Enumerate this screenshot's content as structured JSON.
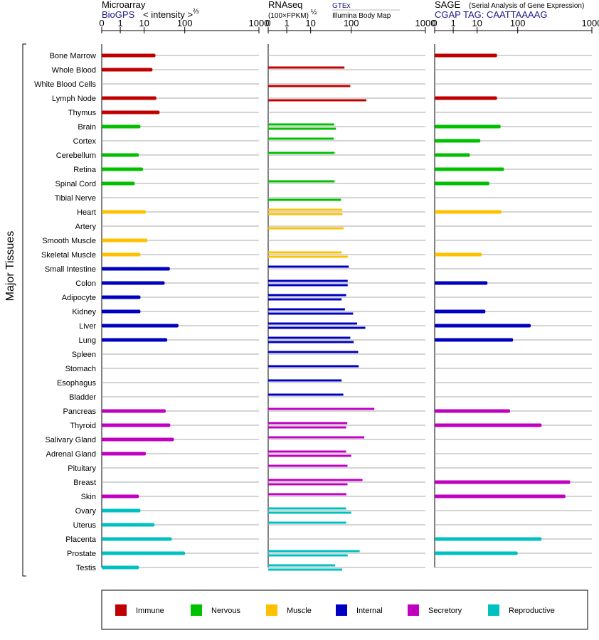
{
  "chart_data": {
    "type": "bar",
    "ylabel": "Major Tissues",
    "categories": [
      "Bone Marrow",
      "Whole Blood",
      "White Blood Cells",
      "Lymph Node",
      "Thymus",
      "Brain",
      "Cortex",
      "Cerebellum",
      "Retina",
      "Spinal Cord",
      "Tibial Nerve",
      "Heart",
      "Artery",
      "Smooth Muscle",
      "Skeletal Muscle",
      "Small Intestine",
      "Colon",
      "Adipocyte",
      "Kidney",
      "Liver",
      "Lung",
      "Spleen",
      "Stomach",
      "Esophagus",
      "Bladder",
      "Pancreas",
      "Thyroid",
      "Salivary Gland",
      "Adrenal Gland",
      "Pituitary",
      "Breast",
      "Skin",
      "Ovary",
      "Uterus",
      "Placenta",
      "Prostate",
      "Testis"
    ],
    "groups": [
      "Immune",
      "Immune",
      "Immune",
      "Immune",
      "Immune",
      "Nervous",
      "Nervous",
      "Nervous",
      "Nervous",
      "Nervous",
      "Nervous",
      "Muscle",
      "Muscle",
      "Muscle",
      "Muscle",
      "Internal",
      "Internal",
      "Internal",
      "Internal",
      "Internal",
      "Internal",
      "Internal",
      "Internal",
      "Internal",
      "Internal",
      "Secretory",
      "Secretory",
      "Secretory",
      "Secretory",
      "Secretory",
      "Secretory",
      "Secretory",
      "Reproductive",
      "Reproductive",
      "Reproductive",
      "Reproductive",
      "Reproductive"
    ],
    "group_colors": {
      "Immune": "#c00000",
      "Nervous": "#00c000",
      "Muscle": "#ffc000",
      "Internal": "#0000c0",
      "Secretory": "#c000c0",
      "Reproductive": "#00c0c0"
    },
    "ticks": [
      "0",
      "1",
      "10",
      "100",
      "1000"
    ],
    "panels": [
      {
        "name": "Microarray",
        "subtitle": "BioGPS",
        "scale_label": "< intensity >",
        "scale_exp": "⅔",
        "values": [
          [
            19
          ],
          [
            16
          ],
          [],
          [
            20
          ],
          [
            24
          ],
          [
            7
          ],
          [],
          [
            6
          ],
          [
            9
          ],
          [
            4
          ],
          [],
          [
            11
          ],
          [],
          [
            12
          ],
          [
            7
          ],
          [
            43
          ],
          [
            32
          ],
          [
            7
          ],
          [
            7
          ],
          [
            70
          ],
          [
            37
          ],
          [],
          [],
          [],
          [],
          [
            34
          ],
          [
            44
          ],
          [
            54
          ],
          [
            11
          ],
          [],
          [],
          [
            6
          ],
          [
            7
          ],
          [
            18
          ],
          [
            48
          ],
          [
            101
          ],
          [
            6
          ]
        ]
      },
      {
        "name": "RNAseq",
        "scale_label": "(100×FPKM)",
        "scale_exp": "½",
        "source1": "GTEx",
        "source2": "Illumina Body Map",
        "values": [
          [],
          [
            68
          ],
          [],
          [],
          [],
          [],
          [],
          [],
          [],
          [],
          [],
          [],
          [],
          [],
          [],
          [],
          [],
          [],
          [],
          [],
          [],
          [],
          [],
          [],
          [],
          [],
          [],
          [],
          [],
          [],
          [],
          [],
          [],
          [],
          [],
          [],
          []
        ],
        "values_pairs": [
          [
            null,
            null
          ],
          [
            68,
            null
          ],
          [
            null,
            95
          ],
          [
            null,
            160
          ],
          [
            null,
            null
          ],
          [
            38,
            42
          ],
          [
            37,
            null
          ],
          [
            39,
            null
          ],
          [
            null,
            null
          ],
          [
            39,
            null
          ],
          [
            null,
            56
          ],
          [
            60,
            61
          ],
          [
            null,
            65
          ],
          [
            null,
            null
          ],
          [
            58,
            82
          ],
          [
            87,
            null
          ],
          [
            82,
            82
          ],
          [
            75,
            58
          ],
          [
            70,
            106
          ],
          [
            120,
            155
          ],
          [
            95,
            108
          ],
          [
            124,
            null
          ],
          [
            126,
            null
          ],
          [
            58,
            null
          ],
          [
            64,
            null
          ],
          [
            205,
            null
          ],
          [
            80,
            75
          ],
          [
            150,
            null
          ],
          [
            75,
            100
          ],
          [
            81,
            null
          ],
          [
            142,
            81
          ],
          [
            76,
            null
          ],
          [
            75,
            100
          ],
          [
            75,
            null
          ],
          [
            null,
            null
          ],
          [
            130,
            82
          ],
          [
            40,
            60
          ]
        ]
      },
      {
        "name": "SAGE",
        "subtitle_small": "(Serial Analysis of Gene Expression)",
        "subtitle": "CGAP TAG: CAATTAAAAG",
        "values": [
          [
            31
          ],
          [],
          [],
          [
            31
          ],
          [],
          [
            38
          ],
          [
            12
          ],
          [
            5
          ],
          [
            46
          ],
          [
            20
          ],
          [],
          [
            40
          ],
          [],
          [],
          [
            13
          ],
          [],
          [
            18
          ],
          [],
          [
            16
          ],
          [
            150
          ],
          [
            77
          ],
          [],
          [],
          [],
          [],
          [
            65
          ],
          [
            210
          ],
          [],
          [],
          [],
          [
            510
          ],
          [
            440
          ],
          [],
          [],
          [
            210
          ],
          [
            100
          ],
          []
        ]
      }
    ],
    "legend": [
      "Immune",
      "Nervous",
      "Muscle",
      "Internal",
      "Secretory",
      "Reproductive"
    ]
  }
}
